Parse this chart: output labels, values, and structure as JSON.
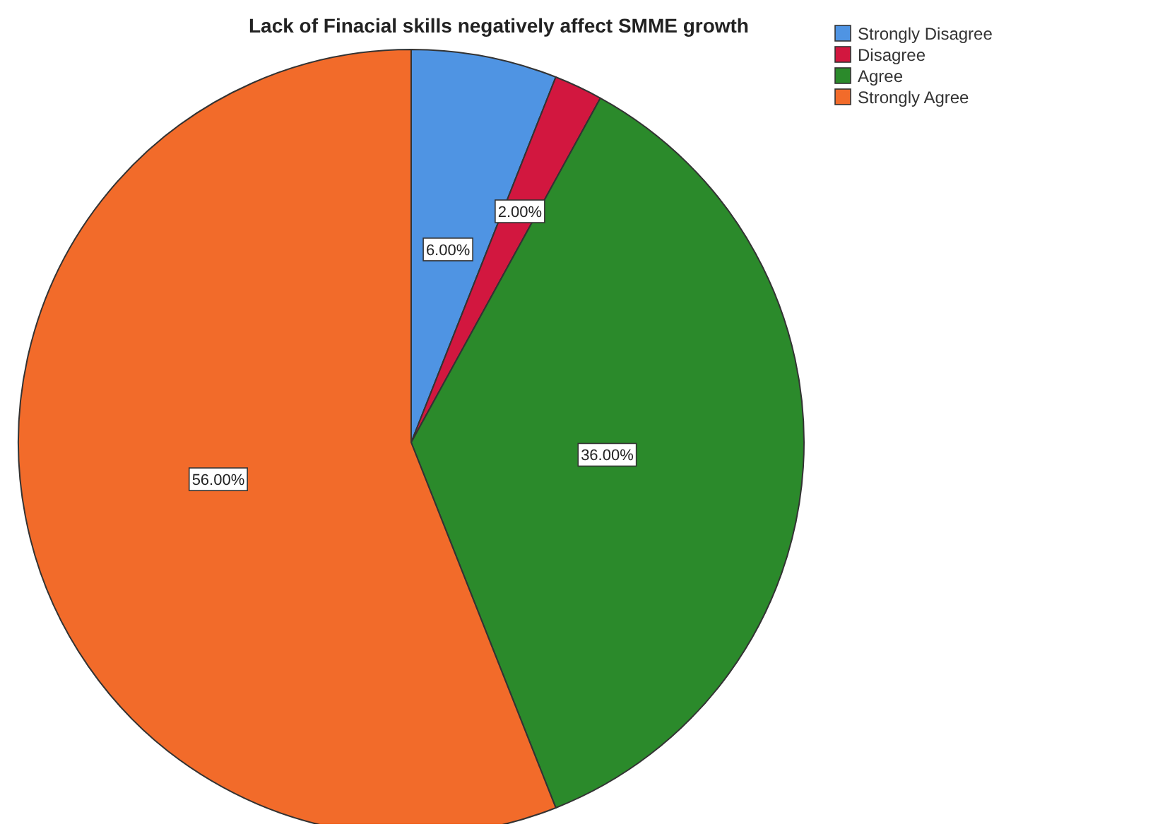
{
  "chart_data": {
    "type": "pie",
    "title": "Lack of Finacial skills negatively affect SMME growth",
    "categories": [
      "Strongly Disagree",
      "Disagree",
      "Agree",
      "Strongly Agree"
    ],
    "values": [
      6,
      2,
      36,
      56
    ],
    "colors": [
      "#4f94e3",
      "#d2173f",
      "#2b8a2b",
      "#f26b2a"
    ],
    "value_labels": [
      "6.00%",
      "2.00%",
      "36.00%",
      "56.00%"
    ],
    "legend": "top right"
  }
}
